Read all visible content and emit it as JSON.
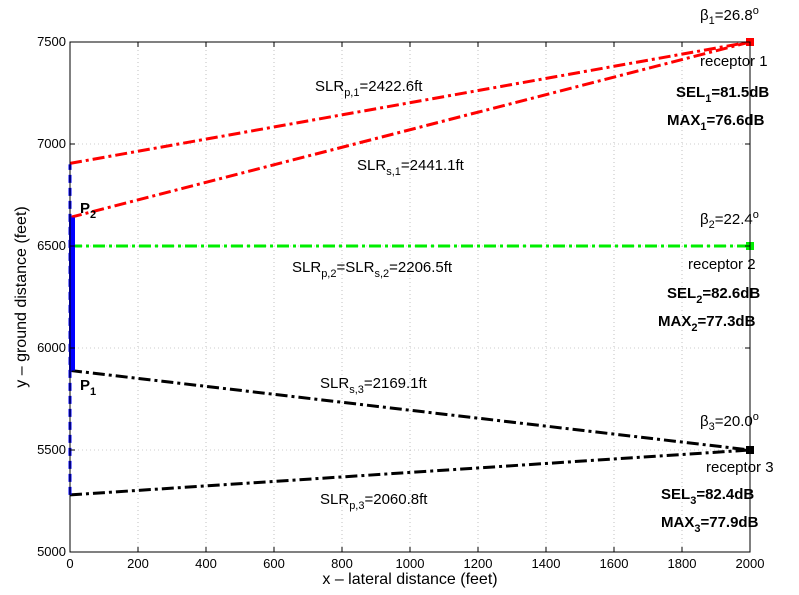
{
  "chart_data": {
    "type": "line",
    "xlabel": "x – lateral distance (feet)",
    "ylabel": "y – ground distance (feet)",
    "xlim": [
      0,
      2000
    ],
    "ylim": [
      5000,
      7500
    ],
    "xticks": [
      0,
      200,
      400,
      600,
      800,
      1000,
      1200,
      1400,
      1600,
      1800,
      2000
    ],
    "yticks": [
      5000,
      5500,
      6000,
      6500,
      7000,
      7500
    ],
    "grid": true,
    "colors": {
      "receptor1": "#ff0000",
      "receptor2": "#00ee00",
      "receptor3": "#000000",
      "path": "#0000ff"
    },
    "flight_path": {
      "dashed_extent": {
        "x": [
          0,
          0
        ],
        "y": [
          5280,
          6900
        ]
      },
      "solid_segment": {
        "x": [
          0,
          0
        ],
        "y": [
          5890,
          6640
        ]
      },
      "P1": {
        "base": "P",
        "sub": "1",
        "x": 0,
        "y": 5890
      },
      "P2": {
        "base": "P",
        "sub": "2",
        "x": 0,
        "y": 6640
      }
    },
    "series": [
      {
        "x": [
          0,
          2000
        ],
        "y": [
          6905,
          7500
        ],
        "color": "#ff0000",
        "style": "dash-dot"
      },
      {
        "x": [
          0,
          2000
        ],
        "y": [
          6640,
          7500
        ],
        "color": "#ff0000",
        "style": "dash-dot"
      },
      {
        "x": [
          0,
          2000
        ],
        "y": [
          6500,
          6500
        ],
        "color": "#00ee00",
        "style": "dash-dot"
      },
      {
        "x": [
          0,
          2000
        ],
        "y": [
          5890,
          5500
        ],
        "color": "#000000",
        "style": "dash-dot"
      },
      {
        "x": [
          0,
          2000
        ],
        "y": [
          5280,
          5500
        ],
        "color": "#000000",
        "style": "dash-dot"
      }
    ],
    "receptors": [
      {
        "x": 2000,
        "y": 7500,
        "color": "#ff0000"
      },
      {
        "x": 2000,
        "y": 6500,
        "color": "#00ee00"
      },
      {
        "x": 2000,
        "y": 5500,
        "color": "#000000"
      }
    ],
    "annotations": {
      "beta1": {
        "base": "β",
        "sub": "1",
        "rest": "=26.8",
        "sup": "o"
      },
      "receptor1": "receptor 1",
      "sel1": {
        "base": "SEL",
        "sub": "1",
        "rest": "=81.5dB"
      },
      "max1": {
        "base": "MAX",
        "sub": "1",
        "rest": "=76.6dB"
      },
      "slrp1": {
        "base": "SLR",
        "sub": "p,1",
        "rest": "=2422.6ft"
      },
      "slrs1": {
        "base": "SLR",
        "sub": "s,1",
        "rest": "=2441.1ft"
      },
      "beta2": {
        "base": "β",
        "sub": "2",
        "rest": "=22.4",
        "sup": "o"
      },
      "receptor2": "receptor 2",
      "sel2": {
        "base": "SEL",
        "sub": "2",
        "rest": "=82.6dB"
      },
      "max2": {
        "base": "MAX",
        "sub": "2",
        "rest": "=77.3dB"
      },
      "slr2": {
        "base": "SLR",
        "sub": "p,2",
        "mid": "=SLR",
        "sub2": "s,2",
        "rest": "=2206.5ft"
      },
      "beta3": {
        "base": "β",
        "sub": "3",
        "rest": "=20.0",
        "sup": "o"
      },
      "receptor3": "receptor 3",
      "sel3": {
        "base": "SEL",
        "sub": "3",
        "rest": "=82.4dB"
      },
      "max3": {
        "base": "MAX",
        "sub": "3",
        "rest": "=77.9dB"
      },
      "slrs3": {
        "base": "SLR",
        "sub": "s,3",
        "rest": "=2169.1ft"
      },
      "slrp3": {
        "base": "SLR",
        "sub": "p,3",
        "rest": "=2060.8ft"
      }
    }
  }
}
